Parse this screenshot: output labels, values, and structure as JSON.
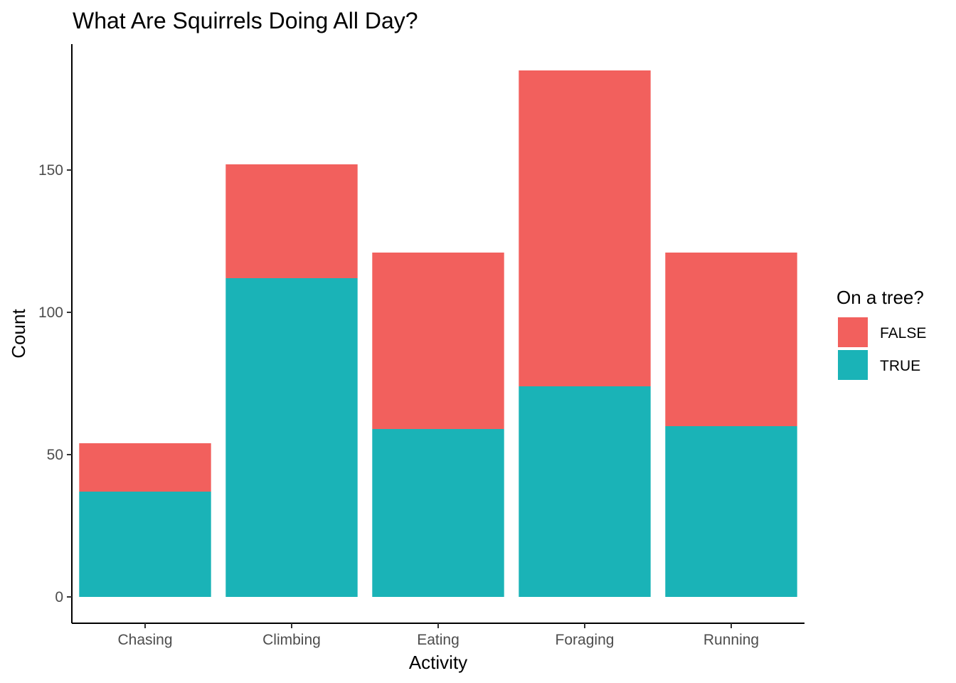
{
  "chart_data": {
    "type": "bar",
    "stacked": true,
    "title": "What Are Squirrels Doing All Day?",
    "xlabel": "Activity",
    "ylabel": "Count",
    "categories": [
      "Chasing",
      "Climbing",
      "Eating",
      "Foraging",
      "Running"
    ],
    "series": [
      {
        "name": "FALSE",
        "values": [
          17,
          40,
          62,
          111,
          61
        ],
        "color": "#F2605D"
      },
      {
        "name": "TRUE",
        "values": [
          37,
          112,
          59,
          74,
          60
        ],
        "color": "#1AB3B7"
      }
    ],
    "ylim": [
      0,
      185
    ],
    "yticks": [
      0,
      50,
      100,
      150
    ],
    "grid": false,
    "legend": {
      "title": "On a tree?",
      "position": "right"
    }
  }
}
